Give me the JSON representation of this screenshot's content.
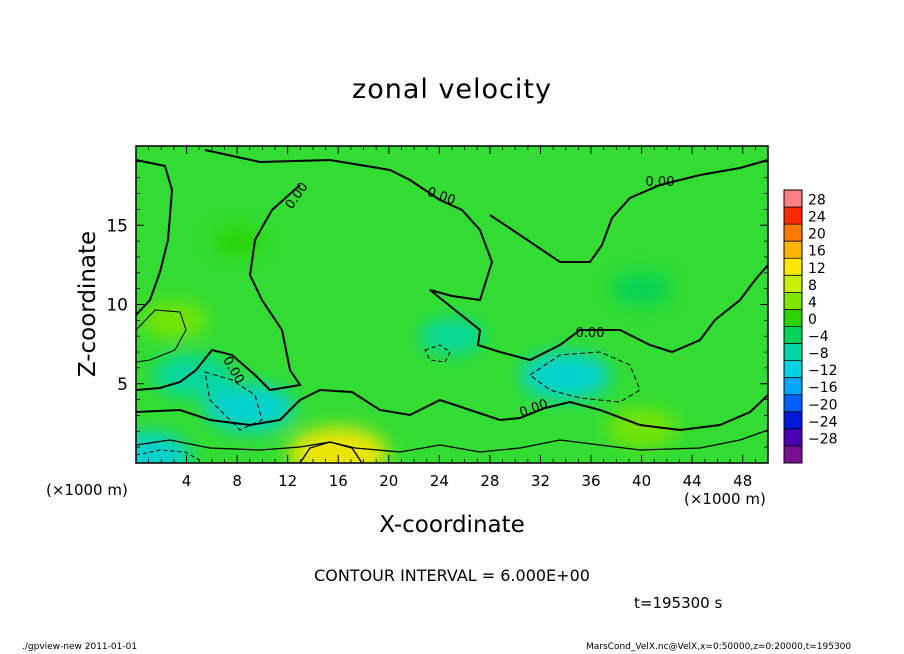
{
  "chart_data": {
    "type": "heatmap",
    "title": "zonal velocity",
    "xlabel": "X-coordinate",
    "ylabel": "Z-coordinate",
    "x_unit": "(×1000 m)",
    "xlim": [
      0,
      50
    ],
    "ylim": [
      0,
      20
    ],
    "x_ticks": [
      4,
      8,
      12,
      16,
      20,
      24,
      28,
      32,
      36,
      40,
      44,
      48
    ],
    "y_ticks": [
      5,
      10,
      15
    ],
    "colorbar": {
      "levels": [
        28,
        24,
        20,
        16,
        12,
        8,
        4,
        0,
        -4,
        -8,
        -12,
        -16,
        -20,
        -24,
        -28
      ],
      "tick_labels": [
        "28",
        "24",
        "20",
        "16",
        "12",
        "8",
        "4",
        "0",
        "−4",
        "−8",
        "−12",
        "−16",
        "−20",
        "−24",
        "−28"
      ],
      "colors": [
        "#ff7f86",
        "#ff2a00",
        "#ff7800",
        "#ffb400",
        "#ffe600",
        "#c8f000",
        "#7ee600",
        "#2ad400",
        "#00d25a",
        "#00d6a8",
        "#00d2e0",
        "#00a8ff",
        "#0060ff",
        "#0018d8",
        "#4800b0",
        "#7a1090"
      ]
    },
    "features": [
      {
        "x": 3,
        "z": 9,
        "value": 5
      },
      {
        "x": 4.5,
        "z": 5.5,
        "value": -8
      },
      {
        "x": 9,
        "z": 3.5,
        "value": -10
      },
      {
        "x": 16,
        "z": 0.6,
        "value": 12
      },
      {
        "x": 34,
        "z": 5.5,
        "value": -10
      },
      {
        "x": 40,
        "z": 2.2,
        "value": 6
      },
      {
        "x": 40,
        "z": 11,
        "value": -4
      },
      {
        "x": 25,
        "z": 8,
        "value": -5
      },
      {
        "x": 1,
        "z": 0.5,
        "value": -9
      },
      {
        "x": 8,
        "z": 14,
        "value": 2
      }
    ],
    "contour_labels": [
      "0.00",
      "0.00",
      "0.00",
      "0.00",
      "0.00",
      "0.00"
    ]
  },
  "contour_interval": "CONTOUR INTERVAL = 6.000E+00",
  "time_label": "t=195300 s",
  "footer_left": "./gpview-new  2011-01-01",
  "footer_right": "MarsCond_VelX.nc@VelX,x=0:50000,z=0:20000,t=195300"
}
